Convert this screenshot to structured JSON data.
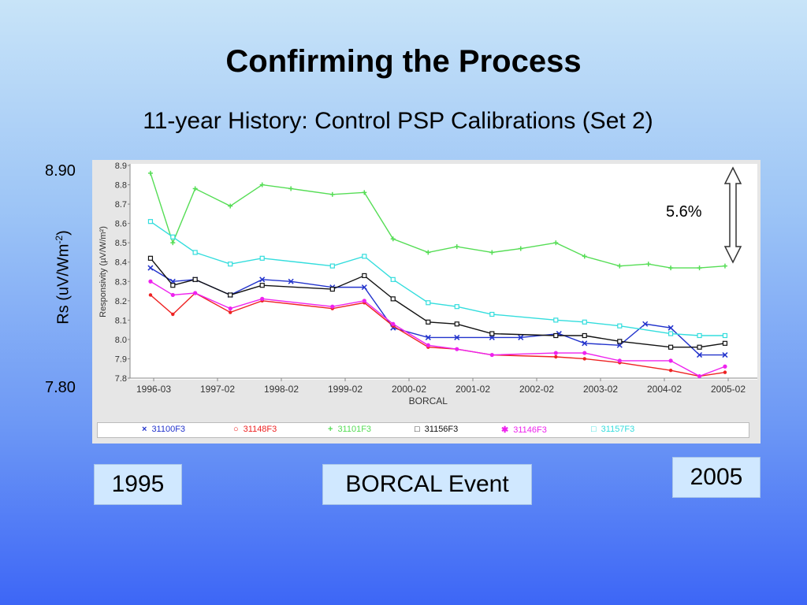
{
  "slide": {
    "title": "Confirming the Process",
    "subtitle": "11-year History: Control PSP Calibrations (Set 2)",
    "y_top_label": "8.90",
    "y_bottom_label": "7.80",
    "rs_label_main": "Rs (uV/Wm",
    "rs_label_sup": "-2",
    "rs_label_end": ")",
    "percent_label": "5.6%",
    "box_left": "1995",
    "box_middle": "BORCAL Event",
    "box_right": "2005"
  },
  "chart_data": {
    "type": "line",
    "title": "",
    "ylabel": "Responsivity (µV/W/m²)",
    "xlabel": "BORCAL",
    "ylim": [
      7.8,
      8.9
    ],
    "yticks": [
      "8.9",
      "8.8",
      "8.7",
      "8.6",
      "8.5",
      "8.4",
      "8.3",
      "8.2",
      "8.1",
      "8.0",
      "7.9",
      "7.8"
    ],
    "xtick_labels": [
      "1996-03",
      "1997-02",
      "1998-02",
      "1999-02",
      "2000-02",
      "2001-02",
      "2002-02",
      "2003-02",
      "2004-02",
      "2005-02"
    ],
    "grid": false,
    "legend": "bottom",
    "series": [
      {
        "name": "31100F3",
        "color": "#2233cc",
        "marker": "x",
        "points": [
          [
            -0.05,
            8.37
          ],
          [
            0.3,
            8.3
          ],
          [
            0.65,
            8.31
          ],
          [
            1.2,
            8.23
          ],
          [
            1.7,
            8.31
          ],
          [
            2.15,
            8.3
          ],
          [
            2.8,
            8.27
          ],
          [
            3.3,
            8.27
          ],
          [
            3.75,
            8.06
          ],
          [
            4.3,
            8.01
          ],
          [
            4.75,
            8.01
          ],
          [
            5.3,
            8.01
          ],
          [
            5.75,
            8.01
          ],
          [
            6.35,
            8.03
          ],
          [
            6.75,
            7.98
          ],
          [
            7.3,
            7.97
          ],
          [
            7.7,
            8.08
          ],
          [
            8.1,
            8.06
          ],
          [
            8.55,
            7.92
          ],
          [
            8.95,
            7.92
          ]
        ]
      },
      {
        "name": "31148F3",
        "color": "#ee2222",
        "marker": "o",
        "points": [
          [
            -0.05,
            8.23
          ],
          [
            0.3,
            8.13
          ],
          [
            0.65,
            8.24
          ],
          [
            1.2,
            8.14
          ],
          [
            1.7,
            8.2
          ],
          [
            2.8,
            8.16
          ],
          [
            3.3,
            8.19
          ],
          [
            3.75,
            8.07
          ],
          [
            4.3,
            7.96
          ],
          [
            4.75,
            7.95
          ],
          [
            5.3,
            7.92
          ],
          [
            6.3,
            7.91
          ],
          [
            6.75,
            7.9
          ],
          [
            7.3,
            7.88
          ],
          [
            8.1,
            7.84
          ],
          [
            8.55,
            7.81
          ],
          [
            8.95,
            7.83
          ]
        ]
      },
      {
        "name": "31101F3",
        "color": "#55dd55",
        "marker": "+",
        "points": [
          [
            -0.05,
            8.86
          ],
          [
            0.3,
            8.5
          ],
          [
            0.65,
            8.78
          ],
          [
            1.2,
            8.69
          ],
          [
            1.7,
            8.8
          ],
          [
            2.15,
            8.78
          ],
          [
            2.8,
            8.75
          ],
          [
            3.3,
            8.76
          ],
          [
            3.75,
            8.52
          ],
          [
            4.3,
            8.45
          ],
          [
            4.75,
            8.48
          ],
          [
            5.3,
            8.45
          ],
          [
            5.75,
            8.47
          ],
          [
            6.3,
            8.5
          ],
          [
            6.75,
            8.43
          ],
          [
            7.3,
            8.38
          ],
          [
            7.75,
            8.39
          ],
          [
            8.1,
            8.37
          ],
          [
            8.55,
            8.37
          ],
          [
            8.95,
            8.38
          ]
        ]
      },
      {
        "name": "31156F3",
        "color": "#111111",
        "marker": "s",
        "points": [
          [
            -0.05,
            8.42
          ],
          [
            0.3,
            8.28
          ],
          [
            0.65,
            8.31
          ],
          [
            1.2,
            8.23
          ],
          [
            1.7,
            8.28
          ],
          [
            2.8,
            8.26
          ],
          [
            3.3,
            8.33
          ],
          [
            3.75,
            8.21
          ],
          [
            4.3,
            8.09
          ],
          [
            4.75,
            8.08
          ],
          [
            5.3,
            8.03
          ],
          [
            6.3,
            8.02
          ],
          [
            6.75,
            8.02
          ],
          [
            7.3,
            7.99
          ],
          [
            8.1,
            7.96
          ],
          [
            8.55,
            7.96
          ],
          [
            8.95,
            7.98
          ]
        ]
      },
      {
        "name": "31146F3",
        "color": "#ee22ee",
        "marker": "*",
        "points": [
          [
            -0.05,
            8.3
          ],
          [
            0.3,
            8.23
          ],
          [
            0.65,
            8.24
          ],
          [
            1.2,
            8.16
          ],
          [
            1.7,
            8.21
          ],
          [
            2.8,
            8.17
          ],
          [
            3.3,
            8.2
          ],
          [
            3.75,
            8.08
          ],
          [
            4.3,
            7.97
          ],
          [
            4.75,
            7.95
          ],
          [
            5.3,
            7.92
          ],
          [
            6.3,
            7.93
          ],
          [
            6.75,
            7.93
          ],
          [
            7.3,
            7.89
          ],
          [
            8.1,
            7.89
          ],
          [
            8.55,
            7.81
          ],
          [
            8.95,
            7.86
          ]
        ]
      },
      {
        "name": "31157F3",
        "color": "#33dddd",
        "marker": "s",
        "points": [
          [
            -0.05,
            8.61
          ],
          [
            0.3,
            8.53
          ],
          [
            0.65,
            8.45
          ],
          [
            1.2,
            8.39
          ],
          [
            1.7,
            8.42
          ],
          [
            2.8,
            8.38
          ],
          [
            3.3,
            8.43
          ],
          [
            3.75,
            8.31
          ],
          [
            4.3,
            8.19
          ],
          [
            4.75,
            8.17
          ],
          [
            5.3,
            8.13
          ],
          [
            6.3,
            8.1
          ],
          [
            6.75,
            8.09
          ],
          [
            7.3,
            8.07
          ],
          [
            8.1,
            8.03
          ],
          [
            8.55,
            8.02
          ],
          [
            8.95,
            8.02
          ]
        ]
      }
    ]
  }
}
